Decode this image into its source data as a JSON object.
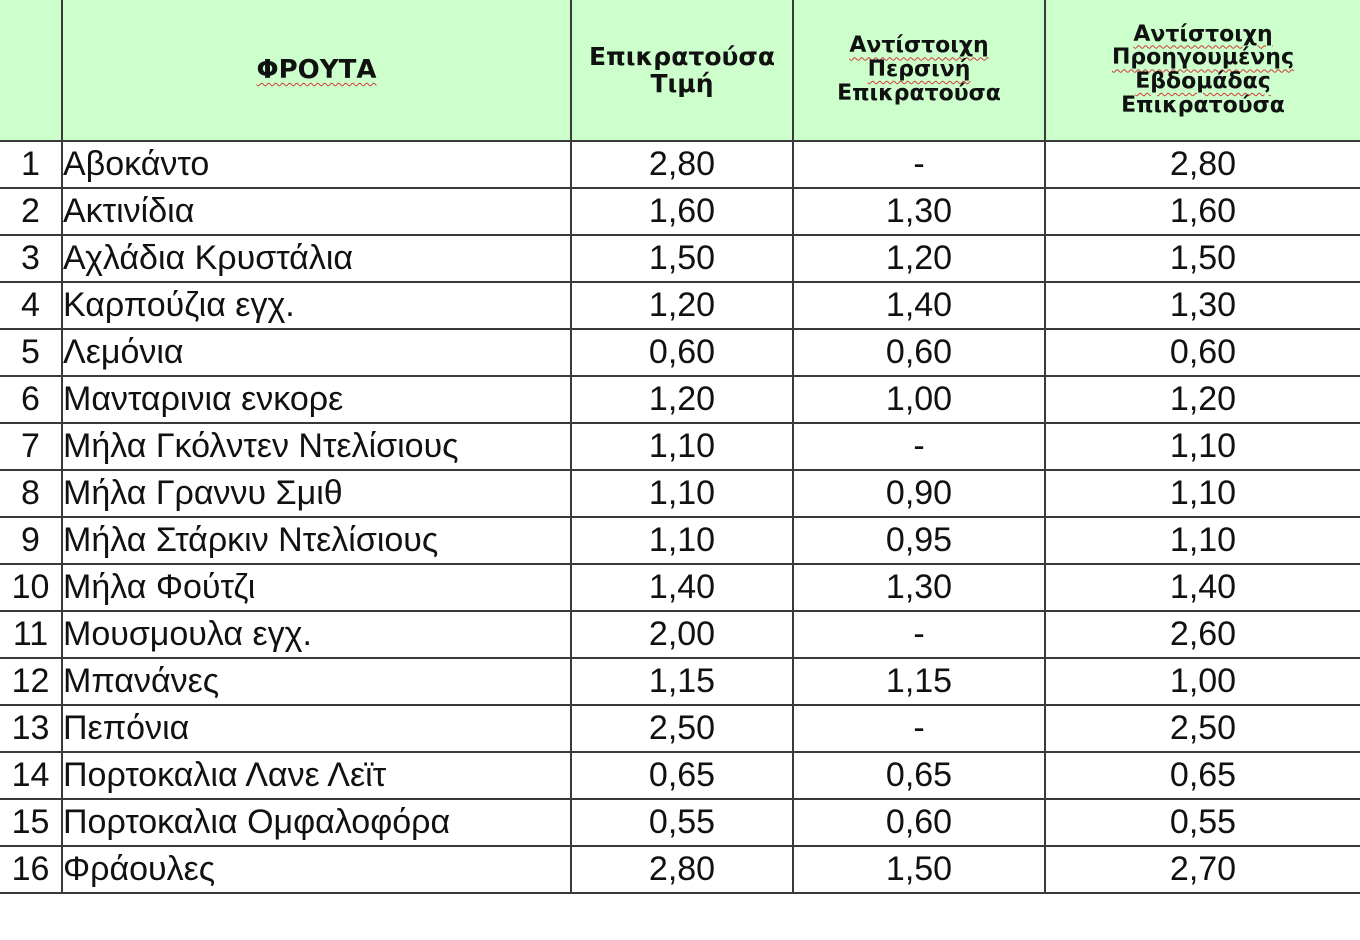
{
  "table": {
    "headers": {
      "number": "",
      "fruit": "ΦΡΟΥΤΑ",
      "price_line1": "Επικρατούσα",
      "price_line2": "Τιμή",
      "last_year_line1": "Αντίστοιχη",
      "last_year_line2": "Περσινή",
      "last_year_line3": "Επικρατούσα",
      "last_week_line1": "Αντίστοιχη",
      "last_week_line2": "Προηγουμένης",
      "last_week_line3": "Εβδομάδας",
      "last_week_line4": "Επικρατούσα"
    },
    "rows": [
      {
        "num": "1",
        "name": "Αβοκάντο",
        "price": "2,80",
        "last_year": "-",
        "last_week": "2,80"
      },
      {
        "num": "2",
        "name": "Ακτινίδια",
        "price": "1,60",
        "last_year": "1,30",
        "last_week": "1,60"
      },
      {
        "num": "3",
        "name": "Αχλάδια Κρυστάλια",
        "price": "1,50",
        "last_year": "1,20",
        "last_week": "1,50"
      },
      {
        "num": "4",
        "name": "Καρπούζια εγχ.",
        "price": "1,20",
        "last_year": "1,40",
        "last_week": "1,30"
      },
      {
        "num": "5",
        "name": "Λεμόνια",
        "price": "0,60",
        "last_year": "0,60",
        "last_week": "0,60"
      },
      {
        "num": "6",
        "name": "Μανταρινια ενκορε",
        "price": "1,20",
        "last_year": "1,00",
        "last_week": "1,20"
      },
      {
        "num": "7",
        "name": "Μήλα Γκόλντεν Ντελίσιους",
        "price": "1,10",
        "last_year": "-",
        "last_week": "1,10"
      },
      {
        "num": "8",
        "name": "Μήλα Γραννυ Σμιθ",
        "price": "1,10",
        "last_year": "0,90",
        "last_week": "1,10"
      },
      {
        "num": "9",
        "name": "Μήλα Στάρκιν Ντελίσιους",
        "price": "1,10",
        "last_year": "0,95",
        "last_week": "1,10"
      },
      {
        "num": "10",
        "name": "Μήλα Φούτζι",
        "price": "1,40",
        "last_year": "1,30",
        "last_week": "1,40"
      },
      {
        "num": "11",
        "name": "Μουσμουλα εγχ.",
        "price": "2,00",
        "last_year": "-",
        "last_week": "2,60"
      },
      {
        "num": "12",
        "name": "Μπανάνες",
        "price": "1,15",
        "last_year": "1,15",
        "last_week": "1,00"
      },
      {
        "num": "13",
        "name": "Πεπόνια",
        "price": "2,50",
        "last_year": "-",
        "last_week": "2,50"
      },
      {
        "num": "14",
        "name": "Πορτοκαλια Λανε Λεϊτ",
        "price": "0,65",
        "last_year": "0,65",
        "last_week": "0,65"
      },
      {
        "num": "15",
        "name": "Πορτοκαλια Ομφαλοφόρα",
        "price": "0,55",
        "last_year": "0,60",
        "last_week": "0,55"
      },
      {
        "num": "16",
        "name": "Φράουλες",
        "price": "2,80",
        "last_year": "1,50",
        "last_week": "2,70"
      }
    ]
  },
  "colors": {
    "header_background": "#ccffcc",
    "grid_lines": "#3a3a3a",
    "spellcheck_underline": "#d23b3b"
  }
}
